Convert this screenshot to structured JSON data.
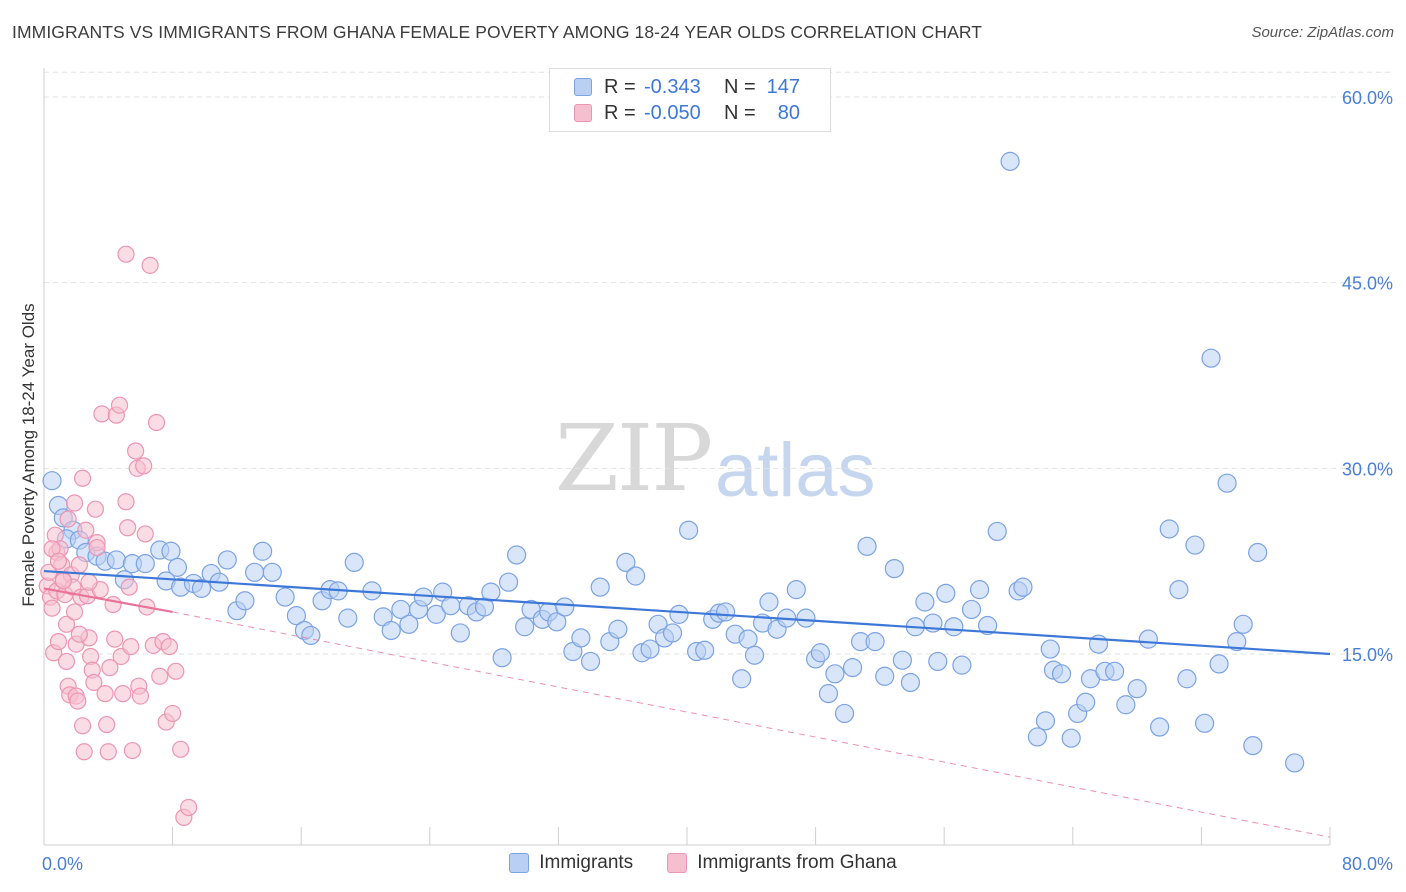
{
  "title": "IMMIGRANTS VS IMMIGRANTS FROM GHANA FEMALE POVERTY AMONG 18-24 YEAR OLDS CORRELATION CHART",
  "source": "Source: ZipAtlas.com",
  "watermark": {
    "zip": "ZIP",
    "atlas": "atlas"
  },
  "colors": {
    "blue": "#3d78d8",
    "blue_fill": "#b9d0f3",
    "pink": "#e8749a",
    "pink_fill": "#f6bfd0",
    "grid": "#e2e2e2"
  },
  "legend_top": [
    {
      "r_label": "R =",
      "r_value": "-0.343",
      "n_label": "N =",
      "n_value": "147"
    },
    {
      "r_label": "R =",
      "r_value": "-0.050",
      "n_label": "N =",
      "n_value": "80"
    }
  ],
  "legend_bottom": [
    "Immigrants",
    "Immigrants from Ghana"
  ],
  "chart_data": {
    "type": "scatter",
    "title": "IMMIGRANTS VS IMMIGRANTS FROM GHANA FEMALE POVERTY AMONG 18-24 YEAR OLDS CORRELATION CHART",
    "xlabel": "",
    "ylabel": "Female Poverty Among 18-24 Year Olds",
    "xlim": [
      0,
      80
    ],
    "ylim": [
      0,
      62
    ],
    "x_tick_labels": [
      "0.0%",
      "80.0%"
    ],
    "y_ticks": [
      15,
      30,
      45,
      60
    ],
    "y_tick_labels": [
      "15.0%",
      "30.0%",
      "45.0%",
      "60.0%"
    ],
    "grid": true,
    "legend_position": "top-center",
    "series": [
      {
        "name": "Immigrants",
        "color": "#3d78d8",
        "trend": {
          "x": [
            0,
            80
          ],
          "y": [
            21.7,
            15.0
          ],
          "style": "solid"
        },
        "points": [
          [
            0.5,
            29.0
          ],
          [
            0.9,
            27.0
          ],
          [
            1.2,
            26.0
          ],
          [
            1.8,
            25.0
          ],
          [
            1.4,
            24.3
          ],
          [
            2.2,
            24.2
          ],
          [
            2.6,
            23.2
          ],
          [
            3.3,
            22.9
          ],
          [
            3.8,
            22.5
          ],
          [
            4.5,
            22.6
          ],
          [
            5.0,
            21.0
          ],
          [
            5.5,
            22.3
          ],
          [
            6.3,
            22.3
          ],
          [
            7.2,
            23.4
          ],
          [
            7.9,
            23.3
          ],
          [
            8.3,
            22.0
          ],
          [
            7.6,
            20.9
          ],
          [
            8.5,
            20.4
          ],
          [
            9.3,
            20.7
          ],
          [
            9.8,
            20.3
          ],
          [
            10.4,
            21.5
          ],
          [
            10.9,
            20.8
          ],
          [
            11.4,
            22.6
          ],
          [
            12.0,
            18.5
          ],
          [
            12.5,
            19.3
          ],
          [
            13.1,
            21.6
          ],
          [
            13.6,
            23.3
          ],
          [
            14.2,
            21.6
          ],
          [
            15.0,
            19.6
          ],
          [
            15.7,
            18.1
          ],
          [
            16.2,
            16.9
          ],
          [
            16.6,
            16.5
          ],
          [
            17.3,
            19.3
          ],
          [
            17.8,
            20.2
          ],
          [
            18.3,
            20.1
          ],
          [
            18.9,
            17.9
          ],
          [
            19.3,
            22.4
          ],
          [
            20.4,
            20.1
          ],
          [
            21.1,
            18.0
          ],
          [
            21.6,
            16.9
          ],
          [
            22.2,
            18.6
          ],
          [
            22.7,
            17.4
          ],
          [
            23.3,
            18.6
          ],
          [
            23.6,
            19.6
          ],
          [
            24.4,
            18.2
          ],
          [
            24.8,
            20.0
          ],
          [
            25.3,
            18.9
          ],
          [
            25.9,
            16.7
          ],
          [
            26.4,
            18.9
          ],
          [
            26.9,
            18.4
          ],
          [
            27.4,
            18.8
          ],
          [
            27.8,
            20.0
          ],
          [
            28.5,
            14.7
          ],
          [
            28.9,
            20.8
          ],
          [
            29.4,
            23.0
          ],
          [
            29.9,
            17.2
          ],
          [
            30.3,
            18.6
          ],
          [
            31.0,
            17.8
          ],
          [
            31.4,
            18.4
          ],
          [
            31.9,
            17.6
          ],
          [
            32.4,
            18.8
          ],
          [
            32.9,
            15.2
          ],
          [
            33.4,
            16.3
          ],
          [
            34.0,
            14.4
          ],
          [
            34.6,
            20.4
          ],
          [
            35.2,
            16.0
          ],
          [
            35.7,
            17.0
          ],
          [
            36.2,
            22.4
          ],
          [
            36.8,
            21.3
          ],
          [
            37.2,
            15.1
          ],
          [
            37.7,
            15.4
          ],
          [
            38.2,
            17.4
          ],
          [
            38.6,
            16.3
          ],
          [
            39.1,
            16.7
          ],
          [
            39.5,
            18.2
          ],
          [
            40.1,
            25.0
          ],
          [
            40.6,
            15.2
          ],
          [
            41.1,
            15.3
          ],
          [
            41.6,
            17.8
          ],
          [
            42.0,
            18.3
          ],
          [
            42.4,
            18.4
          ],
          [
            43.0,
            16.6
          ],
          [
            43.4,
            13.0
          ],
          [
            43.8,
            16.2
          ],
          [
            44.2,
            14.9
          ],
          [
            44.7,
            17.5
          ],
          [
            45.1,
            19.2
          ],
          [
            45.6,
            17.0
          ],
          [
            46.2,
            17.9
          ],
          [
            46.8,
            20.2
          ],
          [
            47.4,
            17.9
          ],
          [
            48.0,
            14.6
          ],
          [
            48.3,
            15.1
          ],
          [
            48.8,
            11.8
          ],
          [
            49.2,
            13.4
          ],
          [
            49.8,
            10.2
          ],
          [
            50.3,
            13.9
          ],
          [
            50.8,
            16.0
          ],
          [
            51.2,
            23.7
          ],
          [
            51.7,
            16.0
          ],
          [
            52.3,
            13.2
          ],
          [
            52.9,
            21.9
          ],
          [
            53.4,
            14.5
          ],
          [
            53.9,
            12.7
          ],
          [
            54.2,
            17.2
          ],
          [
            54.8,
            19.2
          ],
          [
            55.3,
            17.5
          ],
          [
            55.6,
            14.4
          ],
          [
            56.1,
            19.9
          ],
          [
            56.6,
            17.2
          ],
          [
            57.1,
            14.1
          ],
          [
            57.7,
            18.6
          ],
          [
            58.2,
            20.2
          ],
          [
            58.7,
            17.3
          ],
          [
            59.3,
            24.9
          ],
          [
            60.1,
            54.8
          ],
          [
            60.6,
            20.1
          ],
          [
            60.9,
            20.4
          ],
          [
            61.8,
            8.3
          ],
          [
            62.3,
            9.6
          ],
          [
            62.6,
            15.4
          ],
          [
            62.8,
            13.7
          ],
          [
            63.3,
            13.4
          ],
          [
            63.9,
            8.2
          ],
          [
            64.3,
            10.2
          ],
          [
            64.8,
            11.1
          ],
          [
            65.1,
            13.0
          ],
          [
            65.6,
            15.8
          ],
          [
            66.0,
            13.6
          ],
          [
            66.6,
            13.6
          ],
          [
            67.3,
            10.9
          ],
          [
            68.0,
            12.2
          ],
          [
            68.7,
            16.2
          ],
          [
            69.4,
            9.1
          ],
          [
            70.0,
            25.1
          ],
          [
            70.6,
            20.2
          ],
          [
            71.1,
            13.0
          ],
          [
            71.6,
            23.8
          ],
          [
            72.2,
            9.4
          ],
          [
            72.6,
            38.9
          ],
          [
            73.1,
            14.2
          ],
          [
            73.6,
            28.8
          ],
          [
            74.2,
            16.0
          ],
          [
            74.6,
            17.4
          ],
          [
            75.2,
            7.6
          ],
          [
            75.5,
            23.2
          ],
          [
            77.8,
            6.2
          ]
        ]
      },
      {
        "name": "Immigrants from Ghana",
        "color": "#e8749a",
        "trend": {
          "x": [
            0,
            8
          ],
          "y": [
            20.3,
            18.4
          ],
          "style": "solid",
          "extension": {
            "x": [
              8,
              80
            ],
            "y": [
              18.4,
              0.2
            ],
            "style": "dashed"
          }
        },
        "points": [
          [
            0.2,
            20.5
          ],
          [
            0.3,
            21.6
          ],
          [
            0.4,
            19.6
          ],
          [
            0.5,
            18.7
          ],
          [
            0.6,
            15.1
          ],
          [
            0.7,
            24.6
          ],
          [
            0.8,
            23.2
          ],
          [
            0.8,
            20.1
          ],
          [
            0.9,
            16.0
          ],
          [
            1.0,
            23.5
          ],
          [
            1.1,
            22.2
          ],
          [
            1.2,
            21.0
          ],
          [
            1.3,
            19.8
          ],
          [
            1.4,
            17.4
          ],
          [
            1.4,
            14.4
          ],
          [
            1.5,
            12.4
          ],
          [
            1.6,
            11.7
          ],
          [
            1.7,
            21.4
          ],
          [
            1.8,
            20.4
          ],
          [
            1.9,
            18.4
          ],
          [
            2.0,
            15.8
          ],
          [
            2.0,
            11.6
          ],
          [
            2.1,
            11.2
          ],
          [
            2.2,
            22.2
          ],
          [
            2.3,
            19.6
          ],
          [
            2.4,
            9.2
          ],
          [
            2.5,
            7.1
          ],
          [
            2.6,
            25.0
          ],
          [
            2.7,
            19.7
          ],
          [
            2.8,
            16.3
          ],
          [
            2.9,
            14.8
          ],
          [
            3.0,
            13.7
          ],
          [
            3.1,
            12.7
          ],
          [
            3.2,
            26.7
          ],
          [
            3.3,
            24.0
          ],
          [
            3.5,
            20.2
          ],
          [
            3.6,
            34.4
          ],
          [
            3.8,
            11.8
          ],
          [
            3.9,
            9.3
          ],
          [
            4.0,
            7.1
          ],
          [
            4.1,
            13.9
          ],
          [
            4.3,
            19.0
          ],
          [
            4.4,
            16.2
          ],
          [
            4.5,
            34.3
          ],
          [
            4.7,
            35.1
          ],
          [
            4.8,
            14.8
          ],
          [
            4.9,
            11.8
          ],
          [
            5.1,
            27.3
          ],
          [
            5.2,
            25.2
          ],
          [
            5.3,
            20.4
          ],
          [
            5.4,
            15.6
          ],
          [
            5.5,
            7.2
          ],
          [
            5.7,
            31.4
          ],
          [
            5.8,
            30.0
          ],
          [
            5.9,
            12.4
          ],
          [
            6.0,
            11.6
          ],
          [
            6.2,
            30.2
          ],
          [
            6.3,
            24.7
          ],
          [
            6.4,
            18.8
          ],
          [
            6.6,
            46.4
          ],
          [
            6.8,
            15.7
          ],
          [
            7.0,
            33.7
          ],
          [
            7.2,
            13.2
          ],
          [
            7.4,
            16.0
          ],
          [
            7.6,
            9.5
          ],
          [
            7.8,
            15.6
          ],
          [
            8.0,
            10.2
          ],
          [
            8.2,
            13.6
          ],
          [
            8.5,
            7.3
          ],
          [
            8.7,
            1.8
          ],
          [
            9.0,
            2.6
          ],
          [
            0.5,
            23.5
          ],
          [
            0.9,
            22.5
          ],
          [
            1.5,
            25.9
          ],
          [
            2.4,
            29.2
          ],
          [
            1.9,
            27.2
          ],
          [
            2.8,
            20.8
          ],
          [
            3.3,
            23.6
          ],
          [
            1.2,
            20.9
          ],
          [
            2.2,
            16.6
          ],
          [
            5.1,
            47.3
          ]
        ]
      }
    ]
  }
}
